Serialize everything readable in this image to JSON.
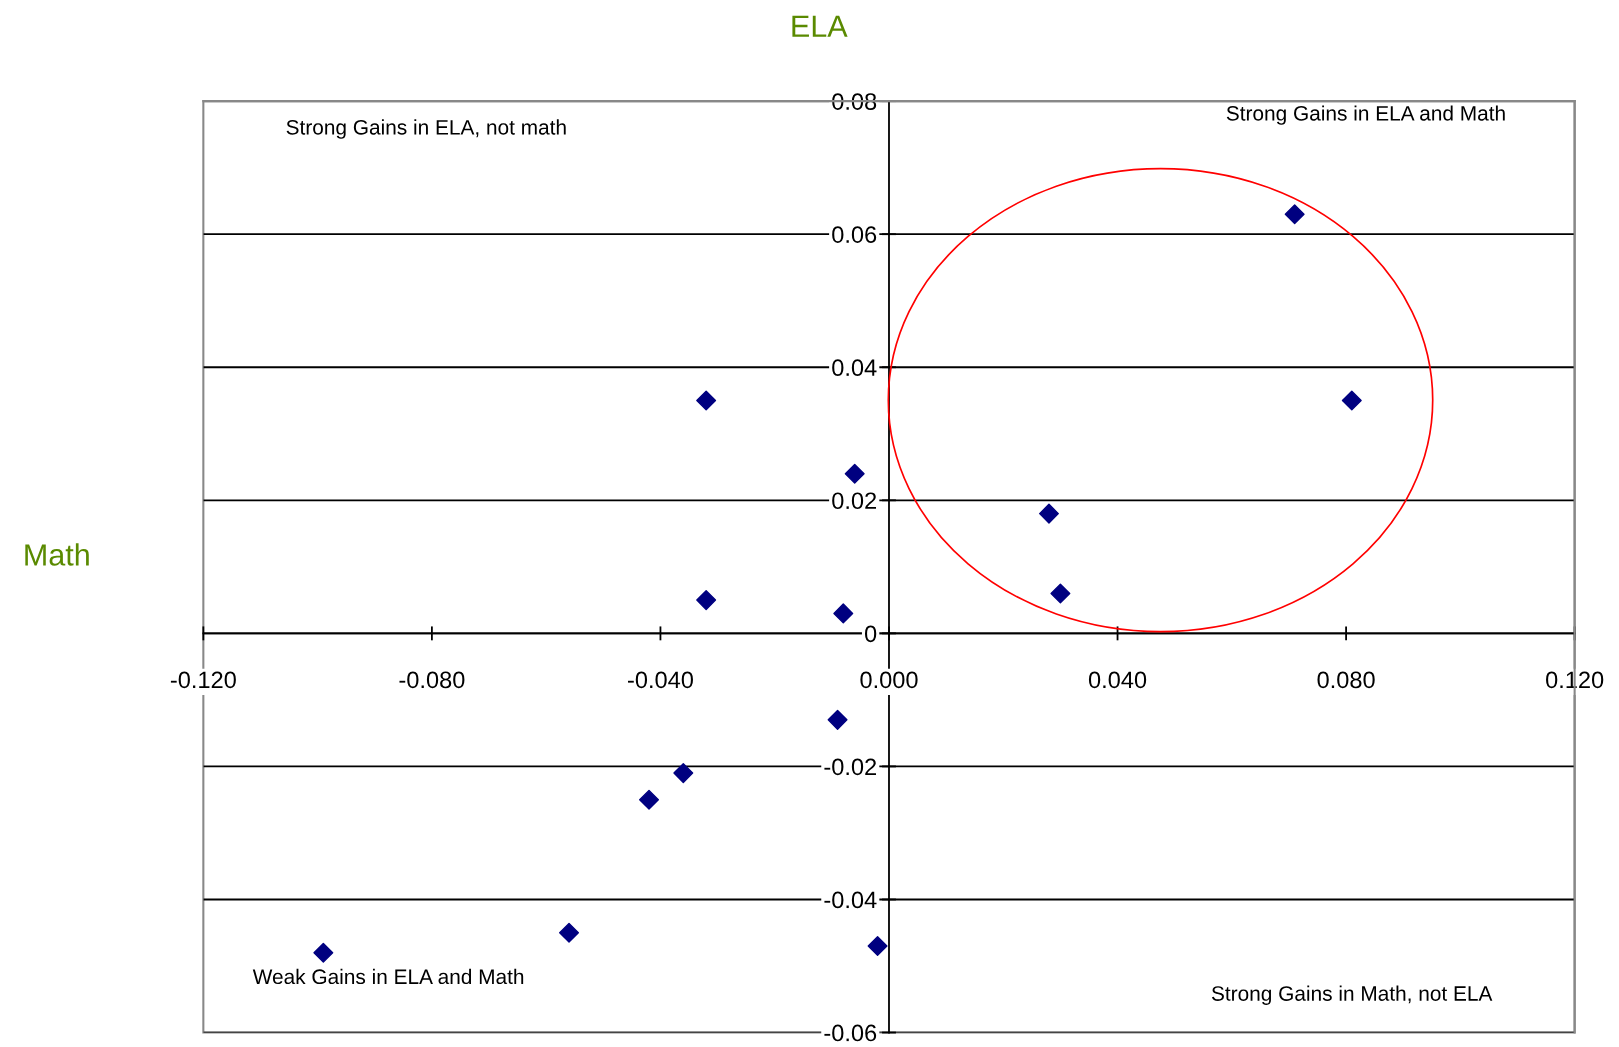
{
  "chart_data": {
    "type": "scatter",
    "xlabel": "Math",
    "ylabel": "ELA",
    "x": [
      -0.032,
      -0.006,
      -0.032,
      -0.008,
      -0.009,
      -0.036,
      -0.042,
      -0.056,
      -0.099,
      -0.002,
      0.028,
      0.03,
      0.071,
      0.081
    ],
    "series": [
      {
        "color": "#000080",
        "values": [
          0.035,
          0.024,
          0.005,
          0.003,
          -0.013,
          -0.021,
          -0.025,
          -0.045,
          -0.048,
          -0.047,
          0.018,
          0.006,
          0.063,
          0.035
        ]
      }
    ],
    "marker": "diamond",
    "grid": "y",
    "xlim": [
      -0.12,
      0.12
    ],
    "ylim": [
      -0.06,
      0.08
    ],
    "xticks": [
      {
        "value": -0.12,
        "label": "-0.120"
      },
      {
        "value": -0.08,
        "label": "-0.080"
      },
      {
        "value": -0.04,
        "label": "-0.040"
      },
      {
        "value": 0,
        "label": "0.000"
      },
      {
        "value": 0.04,
        "label": "0.040"
      },
      {
        "value": 0.08,
        "label": "0.080"
      },
      {
        "value": 0.12,
        "label": "0.120"
      }
    ],
    "yticks": [
      {
        "value": -0.06,
        "label": "-0.06"
      },
      {
        "value": -0.04,
        "label": "-0.04"
      },
      {
        "value": -0.02,
        "label": "-0.02"
      },
      0,
      0.02,
      0.04,
      0.06,
      0.08
    ],
    "annotations": [
      "Strong Gains in ELA, not math",
      "Strong Gains in ELA and Math",
      "Weak Gains in ELA and Math",
      "Strong Gains in Math, not ELA"
    ]
  }
}
